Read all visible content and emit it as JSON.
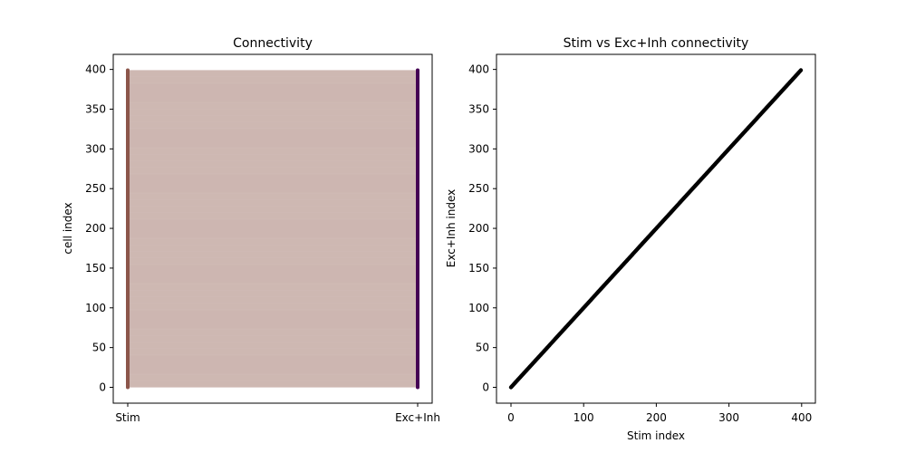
{
  "chart_data": [
    {
      "type": "line",
      "title": "Connectivity",
      "xlabel": "",
      "ylabel": "cell index",
      "categories": [
        "Stim",
        "Exc+Inh"
      ],
      "ylim": [
        -19.95,
        418.95
      ],
      "yticks": [
        0,
        50,
        100,
        150,
        200,
        250,
        300,
        350,
        400
      ],
      "y_range": [
        0,
        399
      ],
      "columns": [
        {
          "name": "Stim",
          "color": "#8c564b",
          "y_range": [
            0,
            399
          ]
        },
        {
          "name": "Exc+Inh",
          "color": "#440154",
          "y_range": [
            0,
            399
          ]
        }
      ],
      "connections": {
        "from": "Stim",
        "to": "Exc+Inh",
        "count": 400,
        "mapping": "one-to-one",
        "color": "#8c564b",
        "alpha": 0.3
      }
    },
    {
      "type": "scatter",
      "title": "Stim vs Exc+Inh connectivity",
      "xlabel": "Stim index",
      "ylabel": "Exc+Inh index",
      "xlim": [
        -19.95,
        418.95
      ],
      "ylim": [
        -19.95,
        418.95
      ],
      "xticks": [
        0,
        100,
        200,
        300,
        400
      ],
      "yticks": [
        0,
        50,
        100,
        150,
        200,
        250,
        300,
        350,
        400
      ],
      "series": [
        {
          "x_range": [
            0,
            399
          ],
          "y_range": [
            0,
            399
          ],
          "step": 1,
          "relation": "y = x",
          "color": "#000000"
        }
      ]
    }
  ]
}
